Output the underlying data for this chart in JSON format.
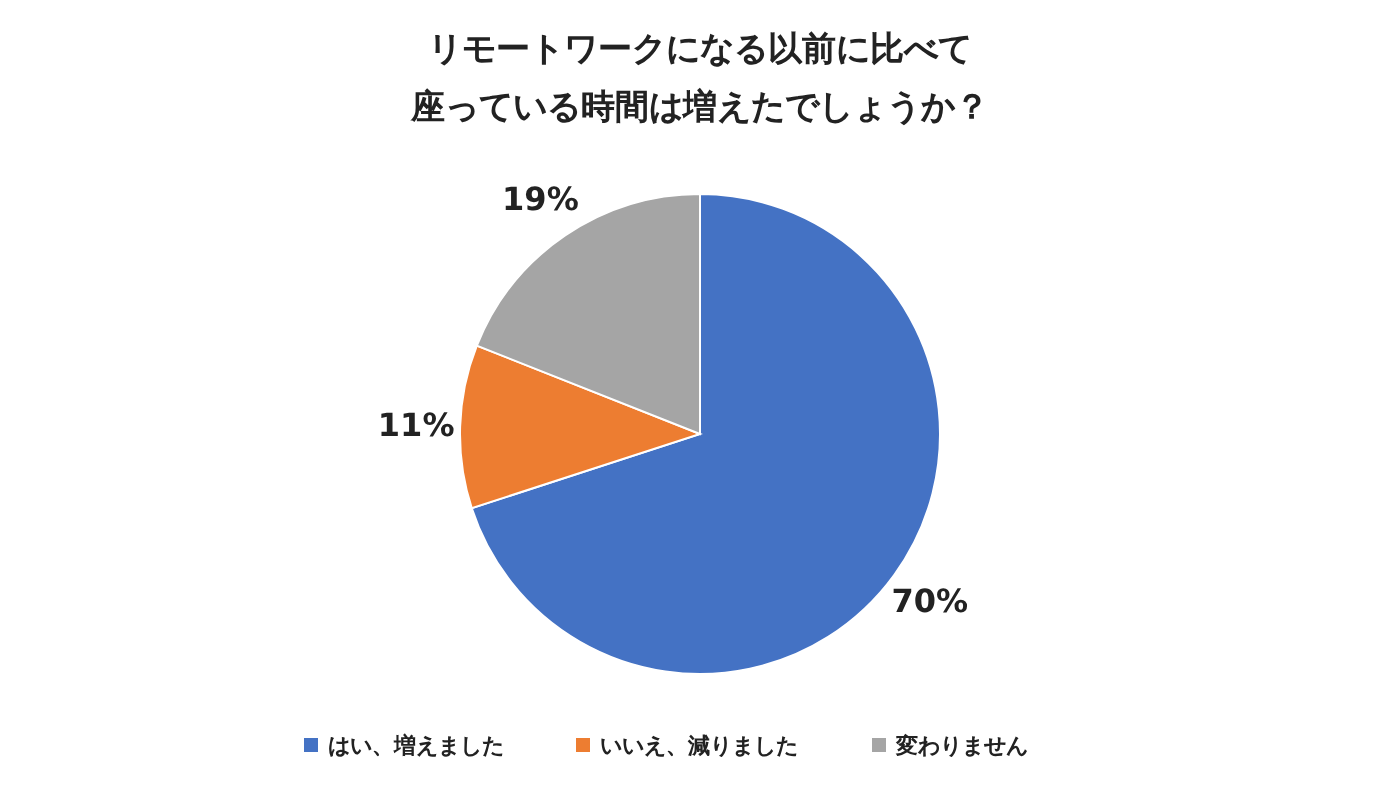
{
  "chart_data": {
    "type": "pie",
    "title": "リモートワークになる以前に比べて座っている時間は増えたでしょうか？",
    "categories": [
      "はい、増えました",
      "いいえ、減りました",
      "変わりません"
    ],
    "values": [
      70,
      11,
      19
    ],
    "colors": [
      "#4472c4",
      "#ed7d31",
      "#a5a5a5"
    ],
    "value_labels": [
      "70%",
      "11%",
      "19%"
    ],
    "legend": "bottom"
  }
}
